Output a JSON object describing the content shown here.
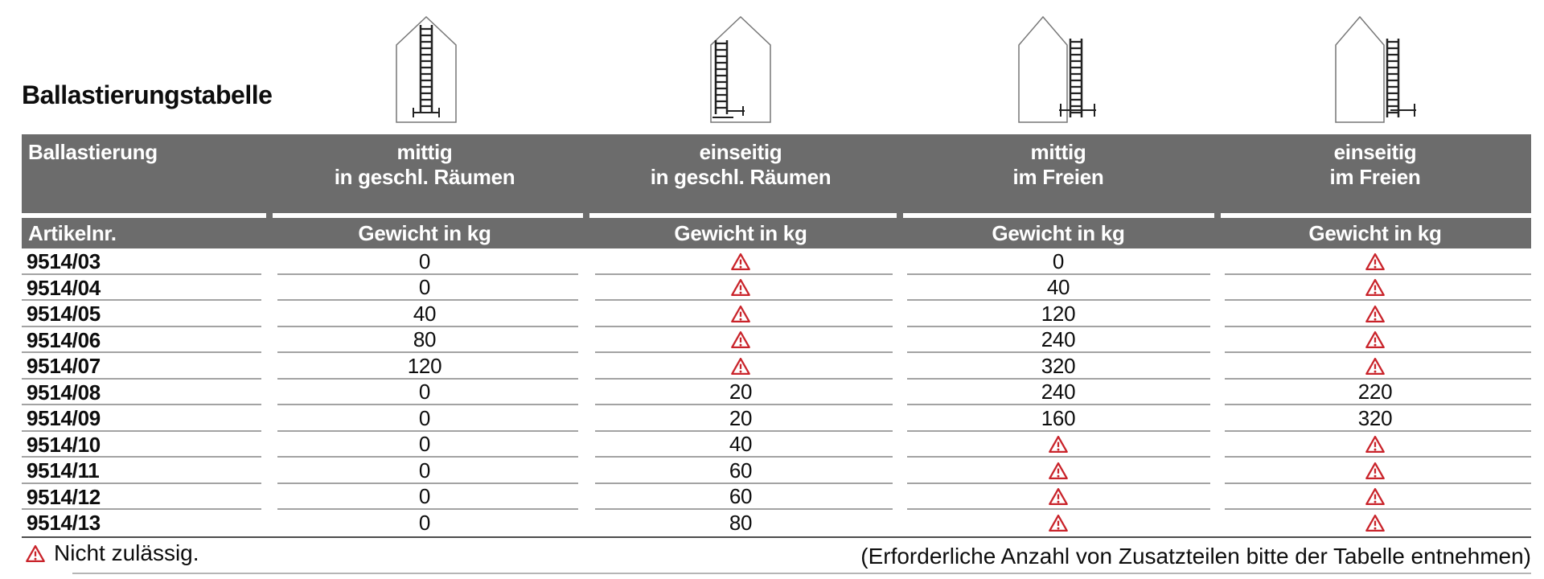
{
  "title": "Ballastierungstabelle",
  "colors": {
    "header_band": "#6c6c6c",
    "warning_red": "#c9232a",
    "separator_gray": "#a3a3a3"
  },
  "table": {
    "corner_label": "Ballastierung",
    "columns": [
      {
        "label_line1": "mittig",
        "label_line2": "in geschl. Räumen",
        "icon": "house-ladder-centered-indoor-icon"
      },
      {
        "label_line1": "einseitig",
        "label_line2": "in geschl. Räumen",
        "icon": "house-ladder-side-indoor-icon"
      },
      {
        "label_line1": "mittig",
        "label_line2": "im Freien",
        "icon": "house-ladder-outdoor-centered-icon"
      },
      {
        "label_line1": "einseitig",
        "label_line2": "im Freien",
        "icon": "house-ladder-outdoor-side-icon"
      }
    ],
    "subheader": {
      "article_label": "Artikelnr.",
      "weight_label": "Gewicht in kg"
    },
    "rows": [
      {
        "article": "9514/03",
        "values": [
          "0",
          "warning",
          "0",
          "warning"
        ]
      },
      {
        "article": "9514/04",
        "values": [
          "0",
          "warning",
          "40",
          "warning"
        ]
      },
      {
        "article": "9514/05",
        "values": [
          "40",
          "warning",
          "120",
          "warning"
        ]
      },
      {
        "article": "9514/06",
        "values": [
          "80",
          "warning",
          "240",
          "warning"
        ]
      },
      {
        "article": "9514/07",
        "values": [
          "120",
          "warning",
          "320",
          "warning"
        ]
      },
      {
        "article": "9514/08",
        "values": [
          "0",
          "20",
          "240",
          "220"
        ]
      },
      {
        "article": "9514/09",
        "values": [
          "0",
          "20",
          "160",
          "320"
        ]
      },
      {
        "article": "9514/10",
        "values": [
          "0",
          "40",
          "warning",
          "warning"
        ]
      },
      {
        "article": "9514/11",
        "values": [
          "0",
          "60",
          "warning",
          "warning"
        ]
      },
      {
        "article": "9514/12",
        "values": [
          "0",
          "60",
          "warning",
          "warning"
        ]
      },
      {
        "article": "9514/13",
        "values": [
          "0",
          "80",
          "warning",
          "warning"
        ]
      }
    ],
    "warning_meaning": "Nicht zulässig."
  },
  "footer": {
    "legend_text": "Nicht zulässig.",
    "note": "(Erforderliche Anzahl von Zusatzteilen bitte der Tabelle entnehmen)"
  }
}
